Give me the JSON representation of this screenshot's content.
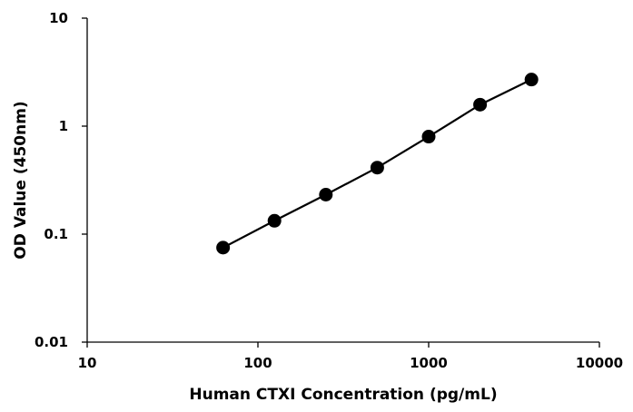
{
  "chart_data": {
    "type": "scatter",
    "title": "",
    "xlabel": "Human CTXI Concentration (pg/mL)",
    "ylabel": "OD Value (450nm)",
    "xscale": "log",
    "yscale": "log",
    "xlim": [
      10,
      10000
    ],
    "ylim": [
      0.01,
      10
    ],
    "x_ticks": [
      "10",
      "100",
      "1000",
      "10000"
    ],
    "y_ticks": [
      "0.01",
      "0.1",
      "1",
      "10"
    ],
    "grid": false,
    "legend": "none",
    "line_color": "#000000",
    "marker_color": "#000000",
    "series": [
      {
        "x": [
          62.5,
          125,
          250,
          500,
          1000,
          2000,
          4000
        ],
        "y": [
          0.075,
          0.133,
          0.232,
          0.413,
          0.8,
          1.58,
          2.7
        ]
      }
    ]
  }
}
